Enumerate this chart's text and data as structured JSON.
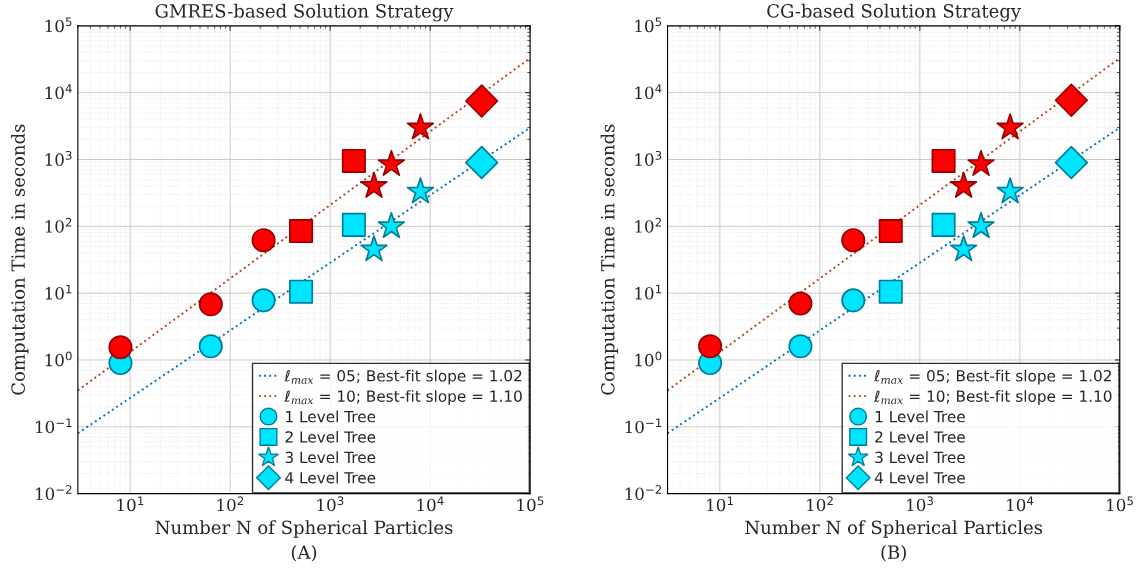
{
  "chart_data": [
    {
      "type": "scatter",
      "title": "GMRES-based Solution Strategy",
      "xlabel": "Number N of Spherical Particles",
      "ylabel": "Computation Time in seconds",
      "annotations": [
        "(A)"
      ],
      "log": "xy",
      "grid": true,
      "legend": "bottom right",
      "xlim": [
        3,
        100000
      ],
      "xticks": [
        {
          "value": 10,
          "label": "10$^{1}$"
        },
        {
          "value": 100,
          "label": "10$^{2}$"
        },
        {
          "value": 1000,
          "label": "10$^{3}$"
        },
        {
          "value": 10000,
          "label": "10$^{4}$"
        },
        {
          "value": 100000,
          "label": "10$^{5}$"
        }
      ],
      "ylim": [
        0.01,
        100000
      ],
      "yticks": [
        {
          "value": 0.01,
          "label": "10$^{−2}$"
        },
        {
          "value": 0.1,
          "label": "10$^{−1}$"
        },
        {
          "value": 1,
          "label": "10$^{0}$"
        },
        {
          "value": 10,
          "label": "10$^{1}$"
        },
        {
          "value": 100,
          "label": "10$^{2}$"
        },
        {
          "value": 1000,
          "label": "10$^{3}$"
        },
        {
          "value": 10000,
          "label": "10$^{4}$"
        },
        {
          "value": 100000,
          "label": "10$^{5}$"
        }
      ],
      "series": [
        {
          "type": "line",
          "name": "ℓ$_{max}$ = 05; Best-fit slope = 1.02",
          "color": "#0072bd",
          "line_style": "dotted",
          "x": [
            3,
            100000
          ],
          "values": [
            0.08,
            3000
          ]
        },
        {
          "type": "line",
          "name": "ℓ$_{max}$ = 10; Best-fit slope = 1.10",
          "color": "#b5451b",
          "line_style": "dotted",
          "x": [
            3,
            100000
          ],
          "values": [
            0.35,
            33000
          ]
        },
        {
          "type": "scatter",
          "name": "1 Level Tree",
          "marker": "circle",
          "color": "#00e5ff",
          "x": [
            8,
            64,
            216
          ],
          "values": [
            0.9,
            1.6,
            7.8
          ]
        },
        {
          "type": "scatter",
          "name": "2 Level Tree",
          "marker": "square",
          "color": "#00e5ff",
          "x": [
            512,
            1728
          ],
          "values": [
            10.5,
            105
          ]
        },
        {
          "type": "scatter",
          "name": "3 Level Tree",
          "marker": "star",
          "color": "#00e5ff",
          "x": [
            2744,
            4096,
            8000
          ],
          "values": [
            45,
            100,
            330
          ]
        },
        {
          "type": "scatter",
          "name": "4 Level Tree",
          "marker": "diamond",
          "color": "#00e5ff",
          "x": [
            32768
          ],
          "values": [
            900
          ]
        },
        {
          "type": "scatter",
          "marker": "circle",
          "color": "#ff0000",
          "x": [
            8,
            64,
            216
          ],
          "values": [
            1.55,
            6.8,
            62
          ]
        },
        {
          "type": "scatter",
          "marker": "square",
          "color": "#ff0000",
          "x": [
            512,
            1728
          ],
          "values": [
            85,
            950
          ]
        },
        {
          "type": "scatter",
          "marker": "star",
          "color": "#ff0000",
          "x": [
            2744,
            4096,
            8000
          ],
          "values": [
            400,
            850,
            3000
          ]
        },
        {
          "type": "scatter",
          "marker": "diamond",
          "color": "#ff0000",
          "x": [
            32768
          ],
          "values": [
            7500
          ]
        }
      ]
    },
    {
      "type": "scatter",
      "title": "CG-based Solution Strategy",
      "xlabel": "Number N of Spherical Particles",
      "ylabel": "Computation Time in seconds",
      "annotations": [
        "(B)"
      ],
      "log": "xy",
      "grid": true,
      "legend": "bottom right",
      "xlim": [
        3,
        100000
      ],
      "xticks": [
        {
          "value": 10,
          "label": "10$^{1}$"
        },
        {
          "value": 100,
          "label": "10$^{2}$"
        },
        {
          "value": 1000,
          "label": "10$^{3}$"
        },
        {
          "value": 10000,
          "label": "10$^{4}$"
        },
        {
          "value": 100000,
          "label": "10$^{5}$"
        }
      ],
      "ylim": [
        0.01,
        100000
      ],
      "yticks": [
        {
          "value": 0.01,
          "label": "10$^{−2}$"
        },
        {
          "value": 0.1,
          "label": "10$^{−1}$"
        },
        {
          "value": 1,
          "label": "10$^{0}$"
        },
        {
          "value": 10,
          "label": "10$^{1}$"
        },
        {
          "value": 100,
          "label": "10$^{2}$"
        },
        {
          "value": 1000,
          "label": "10$^{3}$"
        },
        {
          "value": 10000,
          "label": "10$^{4}$"
        },
        {
          "value": 100000,
          "label": "10$^{5}$"
        }
      ],
      "series": [
        {
          "type": "line",
          "name": "ℓ$_{max}$ = 05; Best-fit slope = 1.02",
          "color": "#0072bd",
          "line_style": "dotted",
          "x": [
            3,
            100000
          ],
          "values": [
            0.08,
            3000
          ]
        },
        {
          "type": "line",
          "name": "ℓ$_{max}$ = 10; Best-fit slope = 1.10",
          "color": "#b5451b",
          "line_style": "dotted",
          "x": [
            3,
            100000
          ],
          "values": [
            0.35,
            33000
          ]
        },
        {
          "type": "scatter",
          "name": "1 Level Tree",
          "marker": "circle",
          "color": "#00e5ff",
          "x": [
            8,
            64,
            216
          ],
          "values": [
            0.9,
            1.6,
            7.8
          ]
        },
        {
          "type": "scatter",
          "name": "2 Level Tree",
          "marker": "square",
          "color": "#00e5ff",
          "x": [
            512,
            1728
          ],
          "values": [
            10.5,
            105
          ]
        },
        {
          "type": "scatter",
          "name": "3 Level Tree",
          "marker": "star",
          "color": "#00e5ff",
          "x": [
            2744,
            4096,
            8000
          ],
          "values": [
            45,
            100,
            330
          ]
        },
        {
          "type": "scatter",
          "name": "4 Level Tree",
          "marker": "diamond",
          "color": "#00e5ff",
          "x": [
            32768
          ],
          "values": [
            900
          ]
        },
        {
          "type": "scatter",
          "marker": "circle",
          "color": "#ff0000",
          "x": [
            8,
            64,
            216
          ],
          "values": [
            1.6,
            7.0,
            62
          ]
        },
        {
          "type": "scatter",
          "marker": "square",
          "color": "#ff0000",
          "x": [
            512,
            1728
          ],
          "values": [
            85,
            950
          ]
        },
        {
          "type": "scatter",
          "marker": "star",
          "color": "#ff0000",
          "x": [
            2744,
            4096,
            8000
          ],
          "values": [
            400,
            850,
            3000
          ]
        },
        {
          "type": "scatter",
          "marker": "diamond",
          "color": "#ff0000",
          "x": [
            32768
          ],
          "values": [
            7700
          ]
        }
      ]
    }
  ]
}
